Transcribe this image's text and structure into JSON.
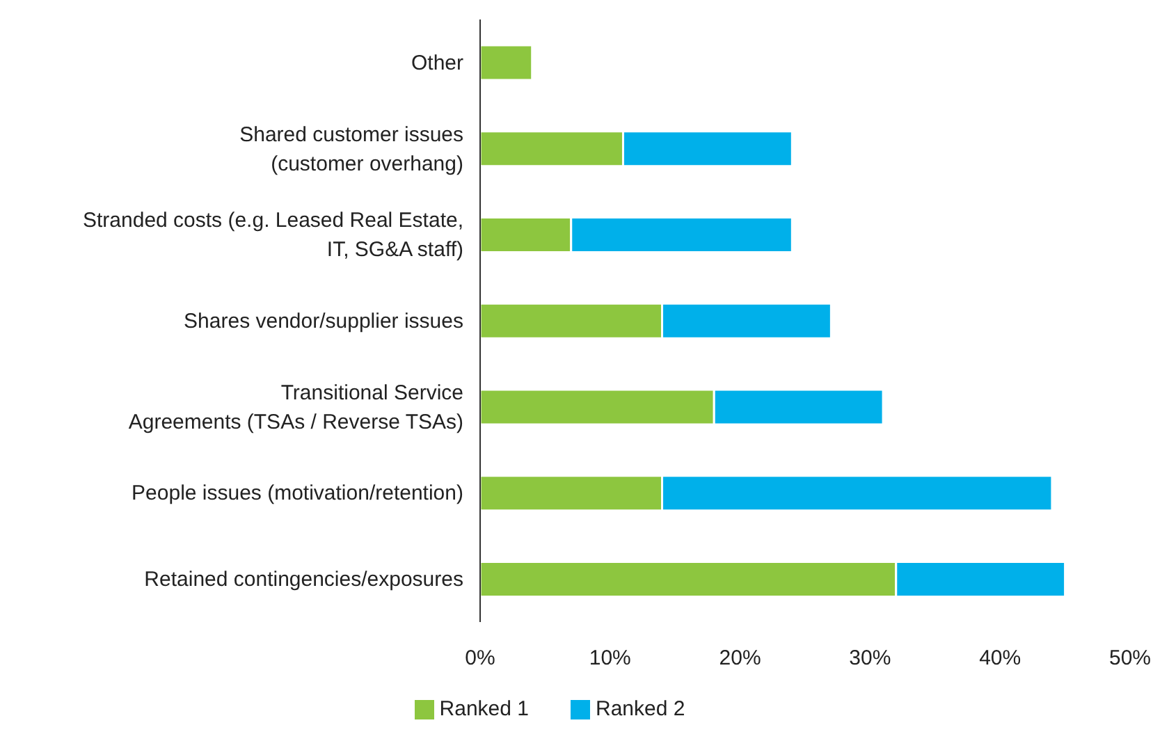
{
  "chart_data": {
    "type": "bar",
    "orientation": "horizontal",
    "stacked": true,
    "categories": [
      "Other",
      "Shared customer issues\n(customer overhang)",
      "Stranded costs (e.g. Leased Real Estate,\nIT, SG&A staff)",
      "Shares vendor/supplier issues",
      "Transitional Service\nAgreements (TSAs / Reverse TSAs)",
      "People issues (motivation/retention)",
      "Retained contingencies/exposures"
    ],
    "series": [
      {
        "name": "Ranked 1",
        "color": "#8dc63f",
        "values": [
          4,
          11,
          7,
          14,
          18,
          14,
          32
        ]
      },
      {
        "name": "Ranked 2",
        "color": "#00b0ea",
        "values": [
          null,
          13,
          17,
          13,
          13,
          30,
          13
        ]
      }
    ],
    "xlim": [
      0,
      50
    ],
    "xticks": [
      {
        "value": 0,
        "label": "0%"
      },
      {
        "value": 10,
        "label": "10%"
      },
      {
        "value": 20,
        "label": "20%"
      },
      {
        "value": 30,
        "label": "30%"
      },
      {
        "value": 40,
        "label": "40%"
      },
      {
        "value": 50,
        "label": "50%"
      }
    ],
    "grid": false,
    "legend": "bottom"
  }
}
